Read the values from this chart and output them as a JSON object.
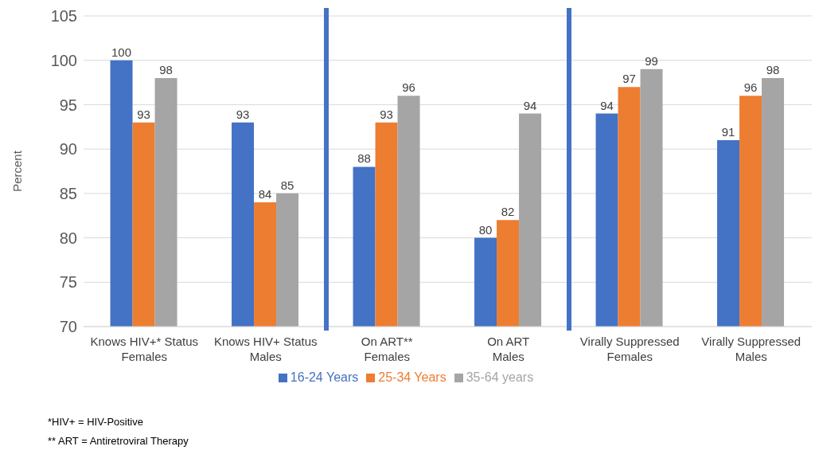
{
  "chart_data": {
    "type": "bar",
    "ylabel": "Percent",
    "categories": [
      "Knows HIV+* Status Females",
      "Knows HIV+ Status Males",
      "On ART** Females",
      "On ART Males",
      "Virally Suppressed Females",
      "Virally Suppressed Males"
    ],
    "series": [
      {
        "name": "16-24 Years",
        "color": "#4472c4",
        "values": [
          100,
          93,
          88,
          80,
          94,
          91
        ]
      },
      {
        "name": "25-34 Years",
        "color": "#ed7d31",
        "values": [
          93,
          84,
          93,
          82,
          97,
          96
        ]
      },
      {
        "name": "35-64 years",
        "color": "#a5a5a5",
        "values": [
          98,
          85,
          96,
          94,
          99,
          98
        ]
      }
    ],
    "ylim": [
      70,
      105
    ],
    "yticks": [
      70,
      75,
      80,
      85,
      90,
      95,
      100,
      105
    ],
    "grid": "y",
    "legend": "bottom",
    "data_labels": true,
    "annotations": [
      "*HIV+ = HIV-Positive",
      "** ART = Antiretroviral Therapy"
    ]
  }
}
